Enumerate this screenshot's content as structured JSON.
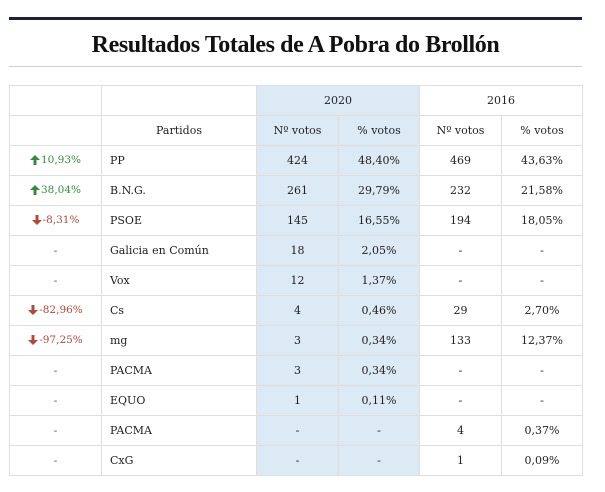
{
  "title": "Resultados Totales de A Pobra do Brollón",
  "years": [
    "2020",
    "2016"
  ],
  "headers": {
    "party": "Partidos",
    "votes": "Nº votos",
    "pct": "% votos"
  },
  "colors": {
    "highlight": "#dceaf5",
    "up": "#3a8a3e",
    "down": "#b04a3a",
    "rule": "#1b2235"
  },
  "rows": [
    {
      "change": "10,93%",
      "trend": "up",
      "party": "PP",
      "votes_2020": "424",
      "pct_2020": "48,40%",
      "votes_2016": "469",
      "pct_2016": "43,63%"
    },
    {
      "change": "38,04%",
      "trend": "up",
      "party": "B.N.G.",
      "votes_2020": "261",
      "pct_2020": "29,79%",
      "votes_2016": "232",
      "pct_2016": "21,58%"
    },
    {
      "change": "-8,31%",
      "trend": "down",
      "party": "PSOE",
      "votes_2020": "145",
      "pct_2020": "16,55%",
      "votes_2016": "194",
      "pct_2016": "18,05%"
    },
    {
      "change": "-",
      "trend": "none",
      "party": "Galicia en Común",
      "votes_2020": "18",
      "pct_2020": "2,05%",
      "votes_2016": "-",
      "pct_2016": "-"
    },
    {
      "change": "-",
      "trend": "none",
      "party": "Vox",
      "votes_2020": "12",
      "pct_2020": "1,37%",
      "votes_2016": "-",
      "pct_2016": "-"
    },
    {
      "change": "-82,96%",
      "trend": "down",
      "party": "Cs",
      "votes_2020": "4",
      "pct_2020": "0,46%",
      "votes_2016": "29",
      "pct_2016": "2,70%"
    },
    {
      "change": "-97,25%",
      "trend": "down",
      "party": "mg",
      "votes_2020": "3",
      "pct_2020": "0,34%",
      "votes_2016": "133",
      "pct_2016": "12,37%"
    },
    {
      "change": "-",
      "trend": "none",
      "party": "PACMA",
      "votes_2020": "3",
      "pct_2020": "0,34%",
      "votes_2016": "-",
      "pct_2016": "-"
    },
    {
      "change": "-",
      "trend": "none",
      "party": "EQUO",
      "votes_2020": "1",
      "pct_2020": "0,11%",
      "votes_2016": "-",
      "pct_2016": "-"
    },
    {
      "change": "-",
      "trend": "none",
      "party": "PACMA",
      "votes_2020": "-",
      "pct_2020": "-",
      "votes_2016": "4",
      "pct_2016": "0,37%"
    },
    {
      "change": "-",
      "trend": "none",
      "party": "CxG",
      "votes_2020": "-",
      "pct_2020": "-",
      "votes_2016": "1",
      "pct_2016": "0,09%"
    }
  ]
}
